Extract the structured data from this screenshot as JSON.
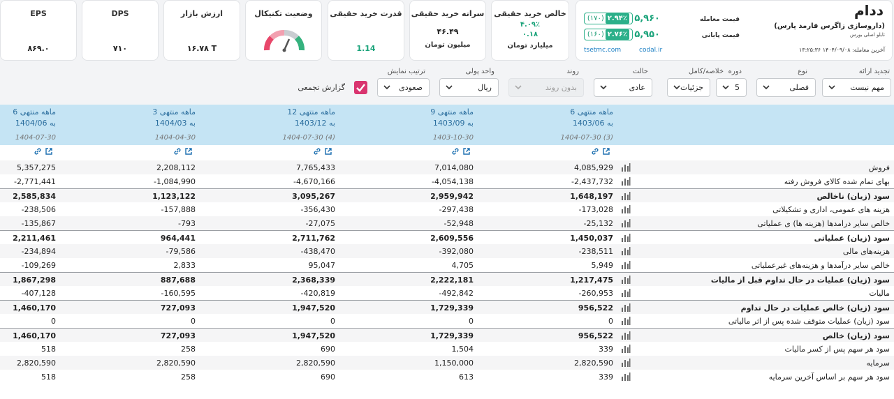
{
  "symbol": {
    "name": "ددام",
    "company": "(داروسازی زاگرس فارمد پارس)",
    "board": "تابلو اصلی بورس",
    "last_trade": "آخرین معامله: ۱۴۰۴/۰۹/۰۸ ۱۳:۲۵:۳۶",
    "trade_price_label": "قیمت معامله",
    "trade_price": "۵,۹۶۰",
    "trade_change": "(۱۷۰)",
    "trade_change_pct": "۲.۹۴٪",
    "close_price_label": "قیمت پایانی",
    "close_price": "۵,۹۵۰",
    "close_change": "(۱۶۰)",
    "close_change_pct": "۲.۷۶٪",
    "link_codal": "codal.ir",
    "link_tsetmc": "tsetmc.com",
    "accent": "#2cb08a"
  },
  "stats": {
    "net_buy_title": "خالص خرید حقیقی",
    "net_buy_pct": "۴.۰۹٪",
    "net_buy_value": "۰.۱۸",
    "net_buy_unit": "میلیارد تومان",
    "per_capita_title": "سرانه خرید حقیقی",
    "per_capita_value": "۴۶.۴۹",
    "per_capita_unit": "میلیون تومان",
    "power_title": "قدرت خرید حقیقی",
    "power_value": "1.14",
    "tech_title": "وضعیت تکنیکال",
    "tech_gauge_icon": "gauge-icon",
    "mcap_title": "ارزش بازار",
    "mcap_value": "۱۶.۷۸ T",
    "dps_title": "DPS",
    "dps_value": "۷۱۰",
    "eps_title": "EPS",
    "eps_value": "۸۶۹.۰"
  },
  "filters": {
    "presentation_label": "تجدید ارائه",
    "presentation_value": "مهم نیست",
    "type_label": "نوع",
    "type_value": "فصلی",
    "period_label": "دوره",
    "period_value": "5",
    "summary_label": "خلاصه/کامل",
    "summary_value": "جزئیات",
    "status_label": "حالت",
    "status_value": "عادی",
    "trend_label": "روند",
    "trend_value": "بدون روند",
    "currency_label": "واحد پولی",
    "currency_value": "ریال",
    "sort_label": "ترتیب نمایش",
    "sort_value": "صعودی",
    "aggregate_label": "گزارش تجمعی",
    "aggregate_checked": true
  },
  "columns": [
    {
      "period": "6 ماهه منتهی",
      "date": "به 1403/06",
      "published": "1404-07-30 (3)"
    },
    {
      "period": "9 ماهه منتهی",
      "date": "به 1403/09",
      "published": "1403-10-30"
    },
    {
      "period": "12 ماهه منتهی",
      "date": "به 1403/12",
      "published": "1404-07-30 (4)"
    },
    {
      "period": "3 ماهه منتهی",
      "date": "به 1404/03",
      "published": "1404-04-30"
    },
    {
      "period": "6 ماهه منتهی",
      "date": "به 1404/06",
      "published": "1404-07-30"
    }
  ],
  "rows": [
    {
      "label": "فروش",
      "bold": false,
      "values": [
        "4,085,929",
        "7,014,080",
        "7,765,433",
        "2,208,112",
        "5,357,275"
      ]
    },
    {
      "label": "بهای تمام شده کالای فروش رفته",
      "bold": false,
      "values": [
        "-2,437,732",
        "-4,054,138",
        "-4,670,166",
        "-1,084,990",
        "-2,771,441"
      ]
    },
    {
      "label": "سود (زیان) ناخالص",
      "bold": true,
      "values": [
        "1,648,197",
        "2,959,942",
        "3,095,267",
        "1,123,122",
        "2,585,834"
      ]
    },
    {
      "label": "هزینه های عمومی، اداری و تشکیلاتی",
      "bold": false,
      "values": [
        "-173,028",
        "-297,438",
        "-356,430",
        "-157,888",
        "-238,506"
      ]
    },
    {
      "label": "خالص سایر درامدها (هزینه ها) ی عملیاتی",
      "bold": false,
      "values": [
        "-25,132",
        "-52,948",
        "-27,075",
        "-793",
        "-135,867"
      ]
    },
    {
      "label": "سود (زیان) عملیاتی",
      "bold": true,
      "values": [
        "1,450,037",
        "2,609,556",
        "2,711,762",
        "964,441",
        "2,211,461"
      ]
    },
    {
      "label": "هزینه‌های مالی",
      "bold": false,
      "values": [
        "-238,511",
        "-392,080",
        "-438,470",
        "-79,586",
        "-234,894"
      ]
    },
    {
      "label": "خالص سایر درآمدها و هزینه‌های غیرعملیاتی",
      "bold": false,
      "values": [
        "5,949",
        "4,705",
        "95,047",
        "2,833",
        "-109,269"
      ]
    },
    {
      "label": "سود (زیان) عملیات در حال تداوم قبل از مالیات",
      "bold": true,
      "values": [
        "1,217,475",
        "2,222,181",
        "2,368,339",
        "887,688",
        "1,867,298"
      ]
    },
    {
      "label": "مالیات",
      "bold": false,
      "values": [
        "-260,953",
        "-492,842",
        "-420,819",
        "-160,595",
        "-407,128"
      ]
    },
    {
      "label": "سود (زیان) خالص عملیات در حال تداوم",
      "bold": true,
      "values": [
        "956,522",
        "1,729,339",
        "1,947,520",
        "727,093",
        "1,460,170"
      ]
    },
    {
      "label": "سود (زیان) عملیات متوقف شده پس از اثر مالیاتی",
      "bold": false,
      "values": [
        "0",
        "0",
        "0",
        "0",
        "0"
      ]
    },
    {
      "label": "سود (زیان) خالص",
      "bold": true,
      "values": [
        "956,522",
        "1,729,339",
        "1,947,520",
        "727,093",
        "1,460,170"
      ]
    },
    {
      "label": "سود هر سهم پس از کسر مالیات",
      "bold": false,
      "values": [
        "339",
        "1,504",
        "690",
        "258",
        "518"
      ]
    },
    {
      "label": "سرمایه",
      "bold": false,
      "values": [
        "2,820,590",
        "1,150,000",
        "2,820,590",
        "2,820,590",
        "2,820,590"
      ]
    },
    {
      "label": "سود هر سهم بر اساس آخرین سرمایه",
      "bold": false,
      "values": [
        "339",
        "613",
        "690",
        "258",
        "518"
      ]
    }
  ]
}
